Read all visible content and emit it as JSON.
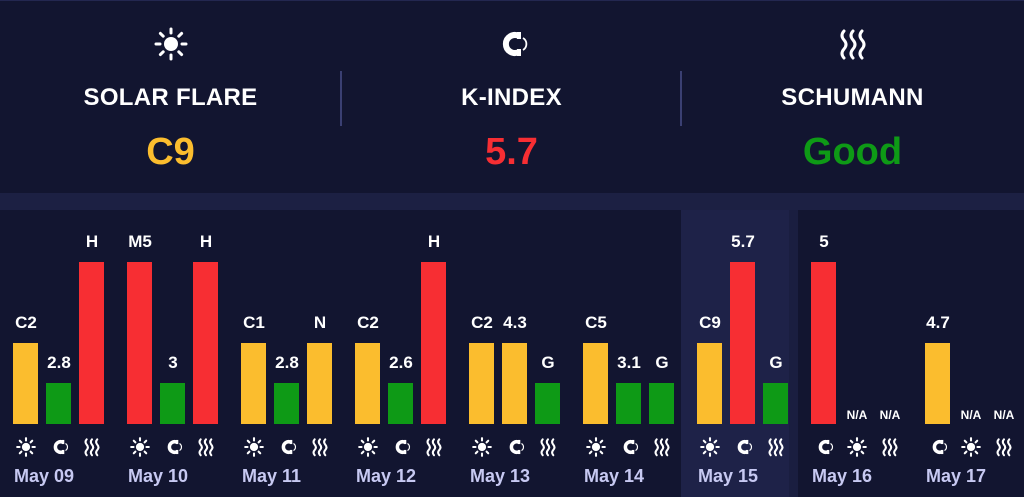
{
  "colors": {
    "yellow": "#fbbd2e",
    "red": "#f72e33",
    "green": "#0e9a16",
    "text": "#ffffff",
    "date": "#c7c9f2"
  },
  "summary": [
    {
      "icon": "sun-icon",
      "label": "SOLAR FLARE",
      "value": "C9",
      "value_color": "#fbbd2e"
    },
    {
      "icon": "magnet-icon",
      "label": "K-INDEX",
      "value": "5.7",
      "value_color": "#f72e33"
    },
    {
      "icon": "waves-icon",
      "label": "SCHUMANN",
      "value": "Good",
      "value_color": "#0e9a16"
    }
  ],
  "days": [
    {
      "date": "May 09",
      "today": false,
      "bars": [
        {
          "label": "C2",
          "level": 0.5,
          "color": "yellow"
        },
        {
          "label": "2.8",
          "level": 0.25,
          "color": "green"
        },
        {
          "label": "H",
          "level": 1.0,
          "color": "red"
        }
      ]
    },
    {
      "date": "May 10",
      "today": false,
      "bars": [
        {
          "label": "M5",
          "level": 1.0,
          "color": "red"
        },
        {
          "label": "3",
          "level": 0.25,
          "color": "green"
        },
        {
          "label": "H",
          "level": 1.0,
          "color": "red"
        }
      ]
    },
    {
      "date": "May 11",
      "today": false,
      "bars": [
        {
          "label": "C1",
          "level": 0.5,
          "color": "yellow"
        },
        {
          "label": "2.8",
          "level": 0.25,
          "color": "green"
        },
        {
          "label": "N",
          "level": 0.5,
          "color": "yellow"
        }
      ]
    },
    {
      "date": "May 12",
      "today": false,
      "bars": [
        {
          "label": "C2",
          "level": 0.5,
          "color": "yellow"
        },
        {
          "label": "2.6",
          "level": 0.25,
          "color": "green"
        },
        {
          "label": "H",
          "level": 1.0,
          "color": "red"
        }
      ]
    },
    {
      "date": "May 13",
      "today": false,
      "bars": [
        {
          "label": "C2",
          "level": 0.5,
          "color": "yellow"
        },
        {
          "label": "4.3",
          "level": 0.5,
          "color": "yellow"
        },
        {
          "label": "G",
          "level": 0.25,
          "color": "green"
        }
      ]
    },
    {
      "date": "May 14",
      "today": false,
      "bars": [
        {
          "label": "C5",
          "level": 0.5,
          "color": "yellow"
        },
        {
          "label": "3.1",
          "level": 0.25,
          "color": "green"
        },
        {
          "label": "G",
          "level": 0.25,
          "color": "green"
        }
      ]
    },
    {
      "date": "May 15",
      "today": true,
      "bars": [
        {
          "label": "C9",
          "level": 0.5,
          "color": "yellow"
        },
        {
          "label": "5.7",
          "level": 1.0,
          "color": "red"
        },
        {
          "label": "G",
          "level": 0.25,
          "color": "green"
        }
      ]
    },
    {
      "date": "May 16",
      "today": false,
      "bars": [
        {
          "label": "5",
          "level": 1.0,
          "color": "red"
        },
        {
          "label": "N/A",
          "level": 0,
          "color": ""
        },
        {
          "label": "N/A",
          "level": 0,
          "color": ""
        }
      ],
      "icons": [
        "magnet-icon",
        "sun-icon",
        "waves-icon"
      ]
    },
    {
      "date": "May 17",
      "today": false,
      "bars": [
        {
          "label": "4.7",
          "level": 0.5,
          "color": "yellow"
        },
        {
          "label": "N/A",
          "level": 0,
          "color": ""
        },
        {
          "label": "N/A",
          "level": 0,
          "color": ""
        }
      ],
      "icons": [
        "magnet-icon",
        "sun-icon",
        "waves-icon"
      ]
    }
  ]
}
